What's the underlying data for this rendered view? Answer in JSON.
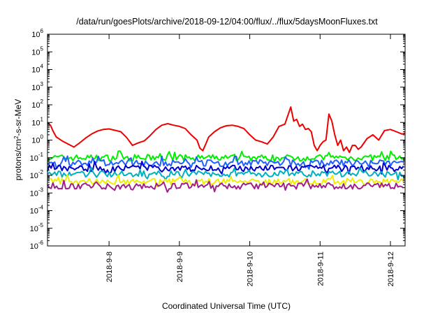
{
  "chart_data": {
    "type": "line",
    "title": "/data/run/goesPlots/archive/2018-09-12/04:00/flux/../flux/5daysMoonFluxes.txt",
    "xlabel": "Coordinated Universal Time (UTC)",
    "ylabel": "protons/cm2-s-sr-MeV",
    "ylabel_parts": {
      "before": "protons/cm",
      "sup": "2",
      "after": "-s-sr-MeV"
    },
    "y_scale": "log",
    "ylim": [
      1e-06,
      1000000.0
    ],
    "y_ticks": [
      {
        "base": "10",
        "exp": "-6",
        "value": 1e-06
      },
      {
        "base": "10",
        "exp": "-5",
        "value": 1e-05
      },
      {
        "base": "10",
        "exp": "-4",
        "value": 0.0001
      },
      {
        "base": "10",
        "exp": "-3",
        "value": 0.001
      },
      {
        "base": "10",
        "exp": "-2",
        "value": 0.01
      },
      {
        "base": "10",
        "exp": "-1",
        "value": 0.1
      },
      {
        "base": "10",
        "exp": "0",
        "value": 1
      },
      {
        "base": "10",
        "exp": "1",
        "value": 10
      },
      {
        "base": "10",
        "exp": "2",
        "value": 100
      },
      {
        "base": "10",
        "exp": "3",
        "value": 1000
      },
      {
        "base": "10",
        "exp": "4",
        "value": 10000
      },
      {
        "base": "10",
        "exp": "5",
        "value": 100000
      },
      {
        "base": "10",
        "exp": "6",
        "value": 1000000
      }
    ],
    "xlim": [
      "2018-09-07T03:00",
      "2018-09-12T05:00"
    ],
    "x_ticks": [
      {
        "label": "2018-9-8",
        "value": "2018-09-08T00:00"
      },
      {
        "label": "2018-9-9",
        "value": "2018-09-09T00:00"
      },
      {
        "label": "2018-9-10",
        "value": "2018-09-10T00:00"
      },
      {
        "label": "2018-9-11",
        "value": "2018-09-11T00:00"
      },
      {
        "label": "2018-9-12",
        "value": "2018-09-12T00:00"
      }
    ],
    "grid": false,
    "legend": "none",
    "series": [
      {
        "color": "#ee0000",
        "x": [
          "2018-09-07T03:00",
          "2018-09-07T04:00",
          "2018-09-07T05:00",
          "2018-09-07T06:00",
          "2018-09-07T08:00",
          "2018-09-07T10:00",
          "2018-09-07T12:00",
          "2018-09-07T14:00",
          "2018-09-07T16:00",
          "2018-09-07T18:00",
          "2018-09-07T20:00",
          "2018-09-07T22:00",
          "2018-09-08T00:00",
          "2018-09-08T02:00",
          "2018-09-08T04:00",
          "2018-09-08T06:00",
          "2018-09-08T08:00",
          "2018-09-08T10:00",
          "2018-09-08T12:00",
          "2018-09-08T14:00",
          "2018-09-08T16:00",
          "2018-09-08T18:00",
          "2018-09-08T20:00",
          "2018-09-08T22:00",
          "2018-09-09T00:00",
          "2018-09-09T02:00",
          "2018-09-09T04:00",
          "2018-09-09T06:00",
          "2018-09-09T07:00",
          "2018-09-09T08:00",
          "2018-09-09T09:00",
          "2018-09-09T10:00",
          "2018-09-09T12:00",
          "2018-09-09T14:00",
          "2018-09-09T16:00",
          "2018-09-09T18:00",
          "2018-09-09T20:00",
          "2018-09-09T22:00",
          "2018-09-10T00:00",
          "2018-09-10T02:00",
          "2018-09-10T04:00",
          "2018-09-10T06:00",
          "2018-09-10T08:00",
          "2018-09-10T10:00",
          "2018-09-10T12:00",
          "2018-09-10T14:00",
          "2018-09-10T15:00",
          "2018-09-10T16:00",
          "2018-09-10T17:00",
          "2018-09-10T18:00",
          "2018-09-10T19:00",
          "2018-09-10T20:00",
          "2018-09-10T21:00",
          "2018-09-10T22:00",
          "2018-09-10T23:00",
          "2018-09-11T00:00",
          "2018-09-11T01:00",
          "2018-09-11T02:00",
          "2018-09-11T03:00",
          "2018-09-11T04:00",
          "2018-09-11T05:00",
          "2018-09-11T06:00",
          "2018-09-11T07:00",
          "2018-09-11T08:00",
          "2018-09-11T09:00",
          "2018-09-11T10:00",
          "2018-09-11T11:00",
          "2018-09-11T12:00",
          "2018-09-11T13:00",
          "2018-09-11T14:00",
          "2018-09-11T16:00",
          "2018-09-11T18:00",
          "2018-09-11T20:00",
          "2018-09-11T22:00",
          "2018-09-12T00:00",
          "2018-09-12T02:00",
          "2018-09-12T04:00",
          "2018-09-12T05:00"
        ],
        "values": [
          10,
          7,
          3,
          1.5,
          0.9,
          0.6,
          0.4,
          0.7,
          1.3,
          2.2,
          3.2,
          4.0,
          4.3,
          3.6,
          3.0,
          1.4,
          0.5,
          0.7,
          0.9,
          1.8,
          4.0,
          7.0,
          8.5,
          7.0,
          6.0,
          4.5,
          2.0,
          1.0,
          0.35,
          0.25,
          0.6,
          1.5,
          3.0,
          5.0,
          6.5,
          7.0,
          6.0,
          4.5,
          2.0,
          1.0,
          0.8,
          0.6,
          1.5,
          6.0,
          8.0,
          75,
          12,
          15,
          6.0,
          8.0,
          4.0,
          4.5,
          3.0,
          0.5,
          0.25,
          0.5,
          0.8,
          1.0,
          30,
          12,
          2.0,
          0.5,
          1.0,
          0.25,
          0.4,
          0.2,
          0.5,
          0.5,
          0.3,
          0.4,
          1.2,
          2.0,
          1.0,
          3.5,
          4.0,
          3.0,
          2.2,
          2.5
        ]
      },
      {
        "color": "#00ee00",
        "x": [
          "2018-09-07T03:00",
          "2018-09-12T05:00"
        ],
        "values": [
          0.1,
          0.1
        ],
        "jitter": true
      },
      {
        "color": "#2060ff",
        "x": [
          "2018-09-07T03:00",
          "2018-09-12T05:00"
        ],
        "values": [
          0.05,
          0.05
        ],
        "jitter": true
      },
      {
        "color": "#0000cc",
        "x": [
          "2018-09-07T03:00",
          "2018-09-12T05:00"
        ],
        "values": [
          0.025,
          0.025
        ],
        "jitter": true
      },
      {
        "color": "#00b0c0",
        "x": [
          "2018-09-07T03:00",
          "2018-09-12T05:00"
        ],
        "values": [
          0.012,
          0.012
        ],
        "jitter": true
      },
      {
        "color": "#eeee00",
        "x": [
          "2018-09-07T03:00",
          "2018-09-12T05:00"
        ],
        "values": [
          0.0045,
          0.0045
        ],
        "jitter": true
      },
      {
        "color": "#a0208a",
        "x": [
          "2018-09-07T03:00",
          "2018-09-12T05:00"
        ],
        "values": [
          0.0025,
          0.0025
        ],
        "jitter": true
      }
    ]
  }
}
